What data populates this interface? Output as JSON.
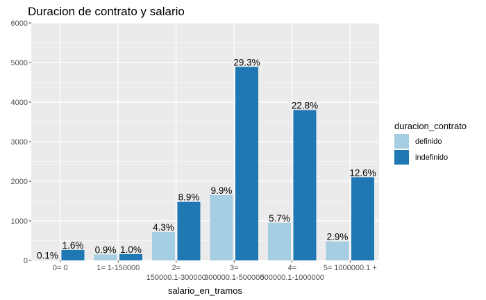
{
  "chart_data": {
    "type": "bar",
    "title": "Duracion de contrato y salario",
    "xlabel": "salario_en_tramos",
    "ylabel": "",
    "ylim": [
      0,
      6000
    ],
    "yticks": [
      "0",
      "1000",
      "2000",
      "3000",
      "4000",
      "5000",
      "6000"
    ],
    "categories": [
      [
        "0= 0"
      ],
      [
        "1= 1-150000"
      ],
      [
        "2=",
        "150000.1-300000"
      ],
      [
        "3=",
        "300000.1-500000"
      ],
      [
        "4=",
        "500000.1-1000000"
      ],
      [
        "5= 1000000.1 +"
      ]
    ],
    "series": [
      {
        "name": "definido",
        "color": "#a6cee3",
        "values": [
          10,
          150,
          720,
          1650,
          950,
          480
        ],
        "labels": [
          "0.1%",
          "0.9%",
          "4.3%",
          "9.9%",
          "5.7%",
          "2.9%"
        ]
      },
      {
        "name": "indefinido",
        "color": "#1f78b4",
        "values": [
          265,
          160,
          1480,
          4890,
          3800,
          2100
        ],
        "labels": [
          "1.6%",
          "1.0%",
          "8.9%",
          "29.3%",
          "22.8%",
          "12.6%"
        ]
      }
    ],
    "legend": {
      "title": "duracion_contrato",
      "position": "right"
    },
    "grid": true,
    "panel_background": "#ebebeb"
  }
}
